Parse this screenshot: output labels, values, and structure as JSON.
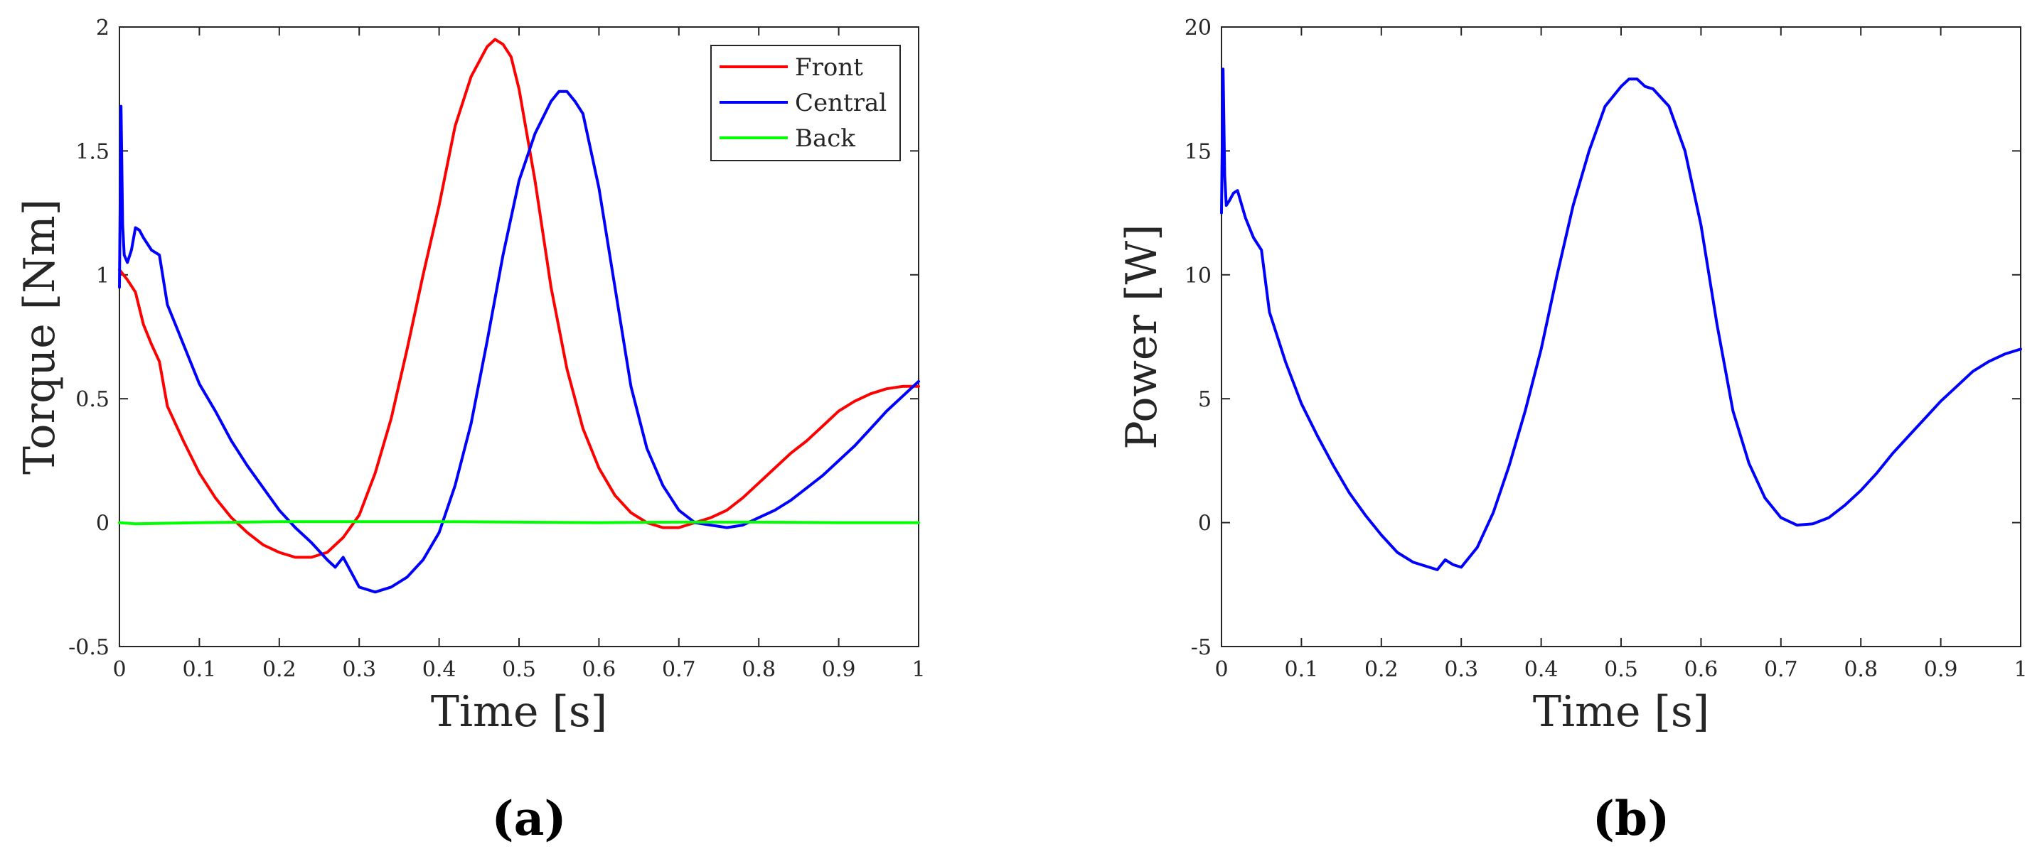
{
  "chart_data": [
    {
      "type": "line",
      "panel_label": "(a)",
      "title": "",
      "xlabel": "Time [s]",
      "ylabel": "Torque [Nm]",
      "xlim": [
        0,
        1
      ],
      "ylim": [
        -0.5,
        2
      ],
      "xticks": [
        0,
        0.1,
        0.2,
        0.3,
        0.4,
        0.5,
        0.6,
        0.7,
        0.8,
        0.9,
        1
      ],
      "xtick_labels": [
        "0",
        "0.1",
        "0.2",
        "0.3",
        "0.4",
        "0.5",
        "0.6",
        "0.7",
        "0.8",
        "0.9",
        "1"
      ],
      "yticks": [
        -0.5,
        0,
        0.5,
        1,
        1.5,
        2
      ],
      "ytick_labels": [
        "-0.5",
        "0",
        "0.5",
        "1",
        "1.5",
        "2"
      ],
      "grid": false,
      "legend": "top-right",
      "series": [
        {
          "name": "Front",
          "color": "#ff0000",
          "x": [
            0,
            0.01,
            0.02,
            0.03,
            0.04,
            0.05,
            0.06,
            0.08,
            0.1,
            0.12,
            0.14,
            0.16,
            0.18,
            0.2,
            0.22,
            0.24,
            0.26,
            0.28,
            0.3,
            0.32,
            0.34,
            0.36,
            0.38,
            0.4,
            0.42,
            0.44,
            0.46,
            0.47,
            0.48,
            0.49,
            0.5,
            0.52,
            0.54,
            0.56,
            0.58,
            0.6,
            0.62,
            0.64,
            0.66,
            0.68,
            0.7,
            0.72,
            0.74,
            0.76,
            0.78,
            0.8,
            0.82,
            0.84,
            0.86,
            0.88,
            0.9,
            0.92,
            0.94,
            0.96,
            0.98,
            1.0
          ],
          "y": [
            1.02,
            0.98,
            0.93,
            0.8,
            0.72,
            0.65,
            0.47,
            0.33,
            0.2,
            0.1,
            0.02,
            -0.04,
            -0.09,
            -0.12,
            -0.14,
            -0.14,
            -0.12,
            -0.06,
            0.03,
            0.2,
            0.42,
            0.7,
            1.0,
            1.28,
            1.6,
            1.8,
            1.92,
            1.95,
            1.93,
            1.88,
            1.75,
            1.38,
            0.95,
            0.62,
            0.38,
            0.22,
            0.11,
            0.04,
            0.0,
            -0.02,
            -0.02,
            0.0,
            0.02,
            0.05,
            0.1,
            0.16,
            0.22,
            0.28,
            0.33,
            0.39,
            0.45,
            0.49,
            0.52,
            0.54,
            0.55,
            0.55
          ]
        },
        {
          "name": "Central",
          "color": "#0000ff",
          "x": [
            0,
            0.002,
            0.004,
            0.006,
            0.01,
            0.015,
            0.02,
            0.025,
            0.03,
            0.04,
            0.05,
            0.06,
            0.07,
            0.08,
            0.1,
            0.12,
            0.14,
            0.16,
            0.18,
            0.2,
            0.22,
            0.24,
            0.26,
            0.27,
            0.28,
            0.3,
            0.32,
            0.34,
            0.36,
            0.38,
            0.4,
            0.42,
            0.44,
            0.46,
            0.48,
            0.5,
            0.52,
            0.54,
            0.55,
            0.56,
            0.57,
            0.58,
            0.6,
            0.62,
            0.64,
            0.66,
            0.68,
            0.7,
            0.72,
            0.74,
            0.76,
            0.78,
            0.8,
            0.82,
            0.84,
            0.86,
            0.88,
            0.9,
            0.92,
            0.94,
            0.96,
            0.98,
            1.0
          ],
          "y": [
            0.95,
            1.68,
            1.2,
            1.08,
            1.05,
            1.1,
            1.19,
            1.18,
            1.15,
            1.1,
            1.08,
            0.88,
            0.8,
            0.72,
            0.56,
            0.45,
            0.33,
            0.23,
            0.14,
            0.05,
            -0.02,
            -0.08,
            -0.15,
            -0.18,
            -0.14,
            -0.26,
            -0.28,
            -0.26,
            -0.22,
            -0.15,
            -0.04,
            0.15,
            0.4,
            0.73,
            1.08,
            1.38,
            1.57,
            1.7,
            1.74,
            1.74,
            1.7,
            1.65,
            1.35,
            0.95,
            0.55,
            0.3,
            0.15,
            0.05,
            0.0,
            -0.01,
            -0.02,
            -0.01,
            0.02,
            0.05,
            0.09,
            0.14,
            0.19,
            0.25,
            0.31,
            0.38,
            0.45,
            0.51,
            0.57
          ]
        },
        {
          "name": "Back",
          "color": "#00ff00",
          "x": [
            0,
            0.02,
            0.1,
            0.2,
            0.3,
            0.4,
            0.5,
            0.6,
            0.7,
            0.8,
            0.9,
            1.0
          ],
          "y": [
            0.0,
            -0.005,
            0.0,
            0.004,
            0.004,
            0.004,
            0.002,
            0.0,
            0.002,
            0.002,
            0.0,
            0.0
          ]
        }
      ]
    },
    {
      "type": "line",
      "panel_label": "(b)",
      "title": "",
      "xlabel": "Time [s]",
      "ylabel": "Power [W]",
      "xlim": [
        0,
        1
      ],
      "ylim": [
        -5,
        20
      ],
      "xticks": [
        0,
        0.1,
        0.2,
        0.3,
        0.4,
        0.5,
        0.6,
        0.7,
        0.8,
        0.9,
        1
      ],
      "xtick_labels": [
        "0",
        "0.1",
        "0.2",
        "0.3",
        "0.4",
        "0.5",
        "0.6",
        "0.7",
        "0.8",
        "0.9",
        "1"
      ],
      "yticks": [
        -5,
        0,
        5,
        10,
        15,
        20
      ],
      "ytick_labels": [
        "-5",
        "0",
        "5",
        "10",
        "15",
        "20"
      ],
      "grid": false,
      "legend": "none",
      "series": [
        {
          "name": "Power",
          "color": "#0000ff",
          "x": [
            0,
            0.002,
            0.004,
            0.006,
            0.01,
            0.015,
            0.02,
            0.03,
            0.04,
            0.05,
            0.06,
            0.08,
            0.1,
            0.12,
            0.14,
            0.16,
            0.18,
            0.2,
            0.22,
            0.24,
            0.26,
            0.27,
            0.28,
            0.29,
            0.3,
            0.32,
            0.34,
            0.36,
            0.38,
            0.4,
            0.42,
            0.44,
            0.46,
            0.48,
            0.5,
            0.51,
            0.52,
            0.53,
            0.54,
            0.56,
            0.58,
            0.6,
            0.62,
            0.64,
            0.66,
            0.68,
            0.7,
            0.72,
            0.74,
            0.76,
            0.78,
            0.8,
            0.82,
            0.84,
            0.86,
            0.88,
            0.9,
            0.92,
            0.94,
            0.96,
            0.98,
            1.0
          ],
          "y": [
            12.5,
            18.3,
            14.0,
            12.8,
            13.0,
            13.3,
            13.4,
            12.3,
            11.5,
            11.0,
            8.5,
            6.5,
            4.8,
            3.5,
            2.3,
            1.2,
            0.3,
            -0.5,
            -1.2,
            -1.6,
            -1.8,
            -1.9,
            -1.5,
            -1.7,
            -1.8,
            -1.0,
            0.4,
            2.3,
            4.5,
            7.0,
            10.0,
            12.8,
            15.0,
            16.8,
            17.6,
            17.9,
            17.9,
            17.6,
            17.5,
            16.8,
            15.0,
            12.0,
            8.0,
            4.5,
            2.4,
            1.0,
            0.2,
            -0.1,
            -0.05,
            0.2,
            0.7,
            1.3,
            2.0,
            2.8,
            3.5,
            4.2,
            4.9,
            5.5,
            6.1,
            6.5,
            6.8,
            7.0
          ]
        }
      ]
    }
  ]
}
